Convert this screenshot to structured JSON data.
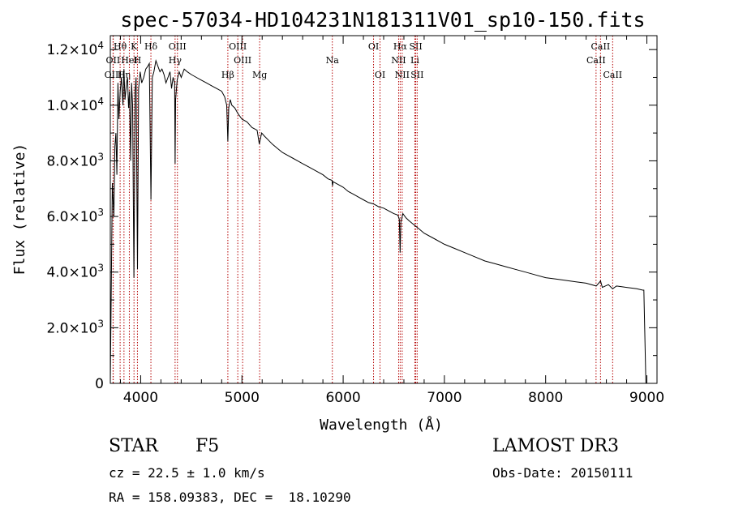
{
  "chart_data": {
    "type": "line",
    "title": "spec-57034-HD104231N181311V01_sp10-150.fits",
    "xlabel": "Wavelength (Å)",
    "ylabel": "Flux (relative)",
    "xlim": [
      3700,
      9100
    ],
    "ylim": [
      0,
      12500
    ],
    "x_ticks": [
      4000,
      5000,
      6000,
      7000,
      8000,
      9000
    ],
    "y_ticks": [
      {
        "value": 0,
        "mant": "0",
        "exp": ""
      },
      {
        "value": 2000,
        "mant": "2.0×10",
        "exp": "3"
      },
      {
        "value": 4000,
        "mant": "4.0×10",
        "exp": "3"
      },
      {
        "value": 6000,
        "mant": "6.0×10",
        "exp": "3"
      },
      {
        "value": 8000,
        "mant": "8.0×10",
        "exp": "3"
      },
      {
        "value": 10000,
        "mant": "1.0×10",
        "exp": "4"
      },
      {
        "value": 12000,
        "mant": "1.2×10",
        "exp": "4"
      }
    ],
    "series": [
      {
        "name": "spectrum",
        "x": [
          3700,
          3720,
          3735,
          3745,
          3755,
          3765,
          3775,
          3785,
          3798,
          3810,
          3825,
          3835,
          3845,
          3860,
          3870,
          3880,
          3890,
          3900,
          3910,
          3920,
          3933,
          3945,
          3955,
          3968,
          3980,
          3995,
          4010,
          4030,
          4050,
          4070,
          4085,
          4101,
          4115,
          4130,
          4150,
          4170,
          4190,
          4210,
          4230,
          4250,
          4270,
          4290,
          4305,
          4320,
          4335,
          4340,
          4345,
          4360,
          4380,
          4400,
          4430,
          4460,
          4500,
          4550,
          4600,
          4650,
          4700,
          4750,
          4800,
          4830,
          4850,
          4861,
          4870,
          4885,
          4900,
          4930,
          4960,
          5000,
          5050,
          5100,
          5150,
          5172,
          5183,
          5195,
          5220,
          5260,
          5300,
          5350,
          5400,
          5450,
          5500,
          5550,
          5600,
          5650,
          5700,
          5750,
          5800,
          5850,
          5890,
          5895,
          5900,
          5950,
          6000,
          6050,
          6100,
          6150,
          6200,
          6250,
          6300,
          6350,
          6400,
          6450,
          6500,
          6540,
          6555,
          6563,
          6570,
          6590,
          6620,
          6650,
          6700,
          6750,
          6800,
          6900,
          7000,
          7100,
          7200,
          7300,
          7400,
          7500,
          7600,
          7700,
          7800,
          7900,
          8000,
          8100,
          8200,
          8300,
          8400,
          8500,
          8542,
          8560,
          8620,
          8662,
          8700,
          8800,
          8900,
          8960,
          8970,
          8990,
          9000
        ],
        "y": [
          0,
          7200,
          6000,
          8500,
          9000,
          7500,
          10800,
          9500,
          10500,
          11000,
          10000,
          11300,
          10200,
          10800,
          11000,
          9900,
          10500,
          8000,
          10800,
          10000,
          3800,
          10500,
          11000,
          4100,
          10600,
          11200,
          10800,
          11000,
          11300,
          11400,
          11500,
          6600,
          11000,
          11200,
          11600,
          11400,
          11200,
          11300,
          11100,
          10800,
          11000,
          11200,
          10600,
          11000,
          10800,
          7900,
          10200,
          10900,
          11200,
          11000,
          11300,
          11200,
          11100,
          11000,
          10900,
          10800,
          10700,
          10600,
          10500,
          10300,
          10000,
          8700,
          9900,
          10200,
          10000,
          9900,
          9700,
          9500,
          9400,
          9200,
          9100,
          8600,
          8800,
          9000,
          8900,
          8750,
          8600,
          8450,
          8300,
          8200,
          8100,
          8000,
          7900,
          7800,
          7700,
          7600,
          7500,
          7350,
          7300,
          7100,
          7250,
          7150,
          7050,
          6900,
          6800,
          6700,
          6600,
          6500,
          6450,
          6350,
          6300,
          6200,
          6100,
          6050,
          5900,
          4700,
          5800,
          6100,
          5950,
          5850,
          5700,
          5550,
          5400,
          5200,
          5000,
          4850,
          4700,
          4550,
          4400,
          4300,
          4200,
          4100,
          4000,
          3900,
          3800,
          3750,
          3700,
          3650,
          3600,
          3500,
          3680,
          3450,
          3550,
          3400,
          3500,
          3450,
          3400,
          3350,
          3350,
          0,
          0
        ]
      }
    ],
    "lines": [
      {
        "label": "Hθ",
        "wl": 3797,
        "row": 0
      },
      {
        "label": "OII",
        "wl": 3727,
        "row": 1
      },
      {
        "label": "OIII",
        "wl": 3729,
        "row": 2
      },
      {
        "label": "Hη",
        "wl": 3835,
        "row": 2
      },
      {
        "label": "HeI",
        "wl": 3888,
        "row": 1
      },
      {
        "label": "K",
        "wl": 3934,
        "row": 0
      },
      {
        "label": "H",
        "wl": 3968,
        "row": 1
      },
      {
        "label": "Hδ",
        "wl": 4101,
        "row": 0
      },
      {
        "label": "OIII",
        "wl": 4363,
        "row": 0
      },
      {
        "label": "Hγ",
        "wl": 4340,
        "row": 1
      },
      {
        "label": "OIII",
        "wl": 4959,
        "row": 0
      },
      {
        "label": "OIII",
        "wl": 5007,
        "row": 1
      },
      {
        "label": "Hβ",
        "wl": 4861,
        "row": 2
      },
      {
        "label": "Mg",
        "wl": 5175,
        "row": 2
      },
      {
        "label": "Na",
        "wl": 5893,
        "row": 1
      },
      {
        "label": "OI",
        "wl": 6300,
        "row": 0
      },
      {
        "label": "OI",
        "wl": 6364,
        "row": 2
      },
      {
        "label": "Hα",
        "wl": 6563,
        "row": 0
      },
      {
        "label": "NII",
        "wl": 6548,
        "row": 1
      },
      {
        "label": "NII",
        "wl": 6583,
        "row": 2
      },
      {
        "label": "SII",
        "wl": 6717,
        "row": 0
      },
      {
        "label": "Li",
        "wl": 6708,
        "row": 1
      },
      {
        "label": "SII",
        "wl": 6731,
        "row": 2
      },
      {
        "label": "CaII",
        "wl": 8542,
        "row": 0
      },
      {
        "label": "CaII",
        "wl": 8498,
        "row": 1
      },
      {
        "label": "CaII",
        "wl": 8662,
        "row": 2
      }
    ],
    "line_color": "#b40000"
  },
  "info": {
    "class": "STAR",
    "subclass": "F5",
    "survey": "LAMOST DR3",
    "cz": "cz = 22.5 ± 1.0 km/s",
    "obs_date": "Obs-Date: 20150111",
    "radec": "RA = 158.09383, DEC =  18.10290"
  }
}
